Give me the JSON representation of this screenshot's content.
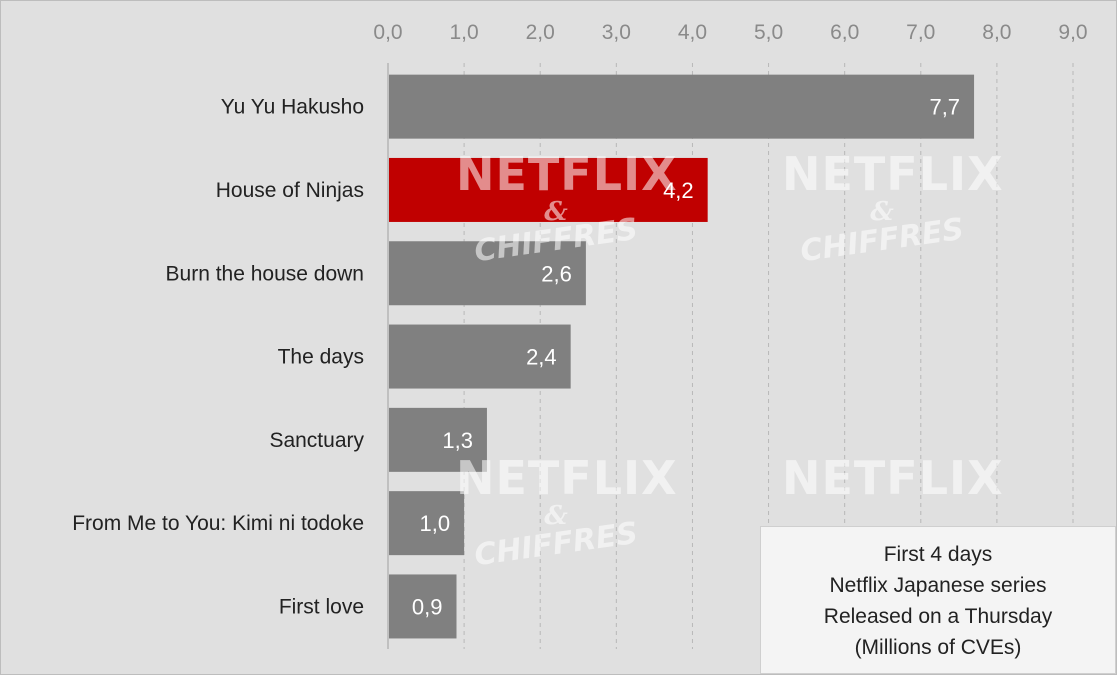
{
  "chart_data": {
    "type": "bar",
    "orientation": "horizontal",
    "categories": [
      "Yu Yu Hakusho",
      "House of Ninjas",
      "Burn the house down",
      "The days",
      "Sanctuary",
      "From Me to You: Kimi ni todoke",
      "First love"
    ],
    "values": [
      7.7,
      4.2,
      2.6,
      2.4,
      1.3,
      1.0,
      0.9
    ],
    "value_labels": [
      "7,7",
      "4,2",
      "2,6",
      "2,4",
      "1,3",
      "1,0",
      "0,9"
    ],
    "xlim": [
      0,
      9
    ],
    "ticks": [
      "0,0",
      "1,0",
      "2,0",
      "3,0",
      "4,0",
      "5,0",
      "6,0",
      "7,0",
      "8,0",
      "9,0"
    ],
    "axis_position": "top",
    "grid": "vertical-dashed",
    "highlight_index": 1,
    "colors": {
      "default": "#808080",
      "highlight": "#c00000",
      "background": "#e0e0e0"
    },
    "annotation_lines": [
      "First 4 days",
      "Netflix Japanese series",
      "Released on a Thursday",
      "(Millions of CVEs)"
    ],
    "annotation_position": "bottom-right",
    "watermark": {
      "line1": "NETFLIX",
      "line2": "&",
      "line3": "CHIFFRES"
    }
  }
}
